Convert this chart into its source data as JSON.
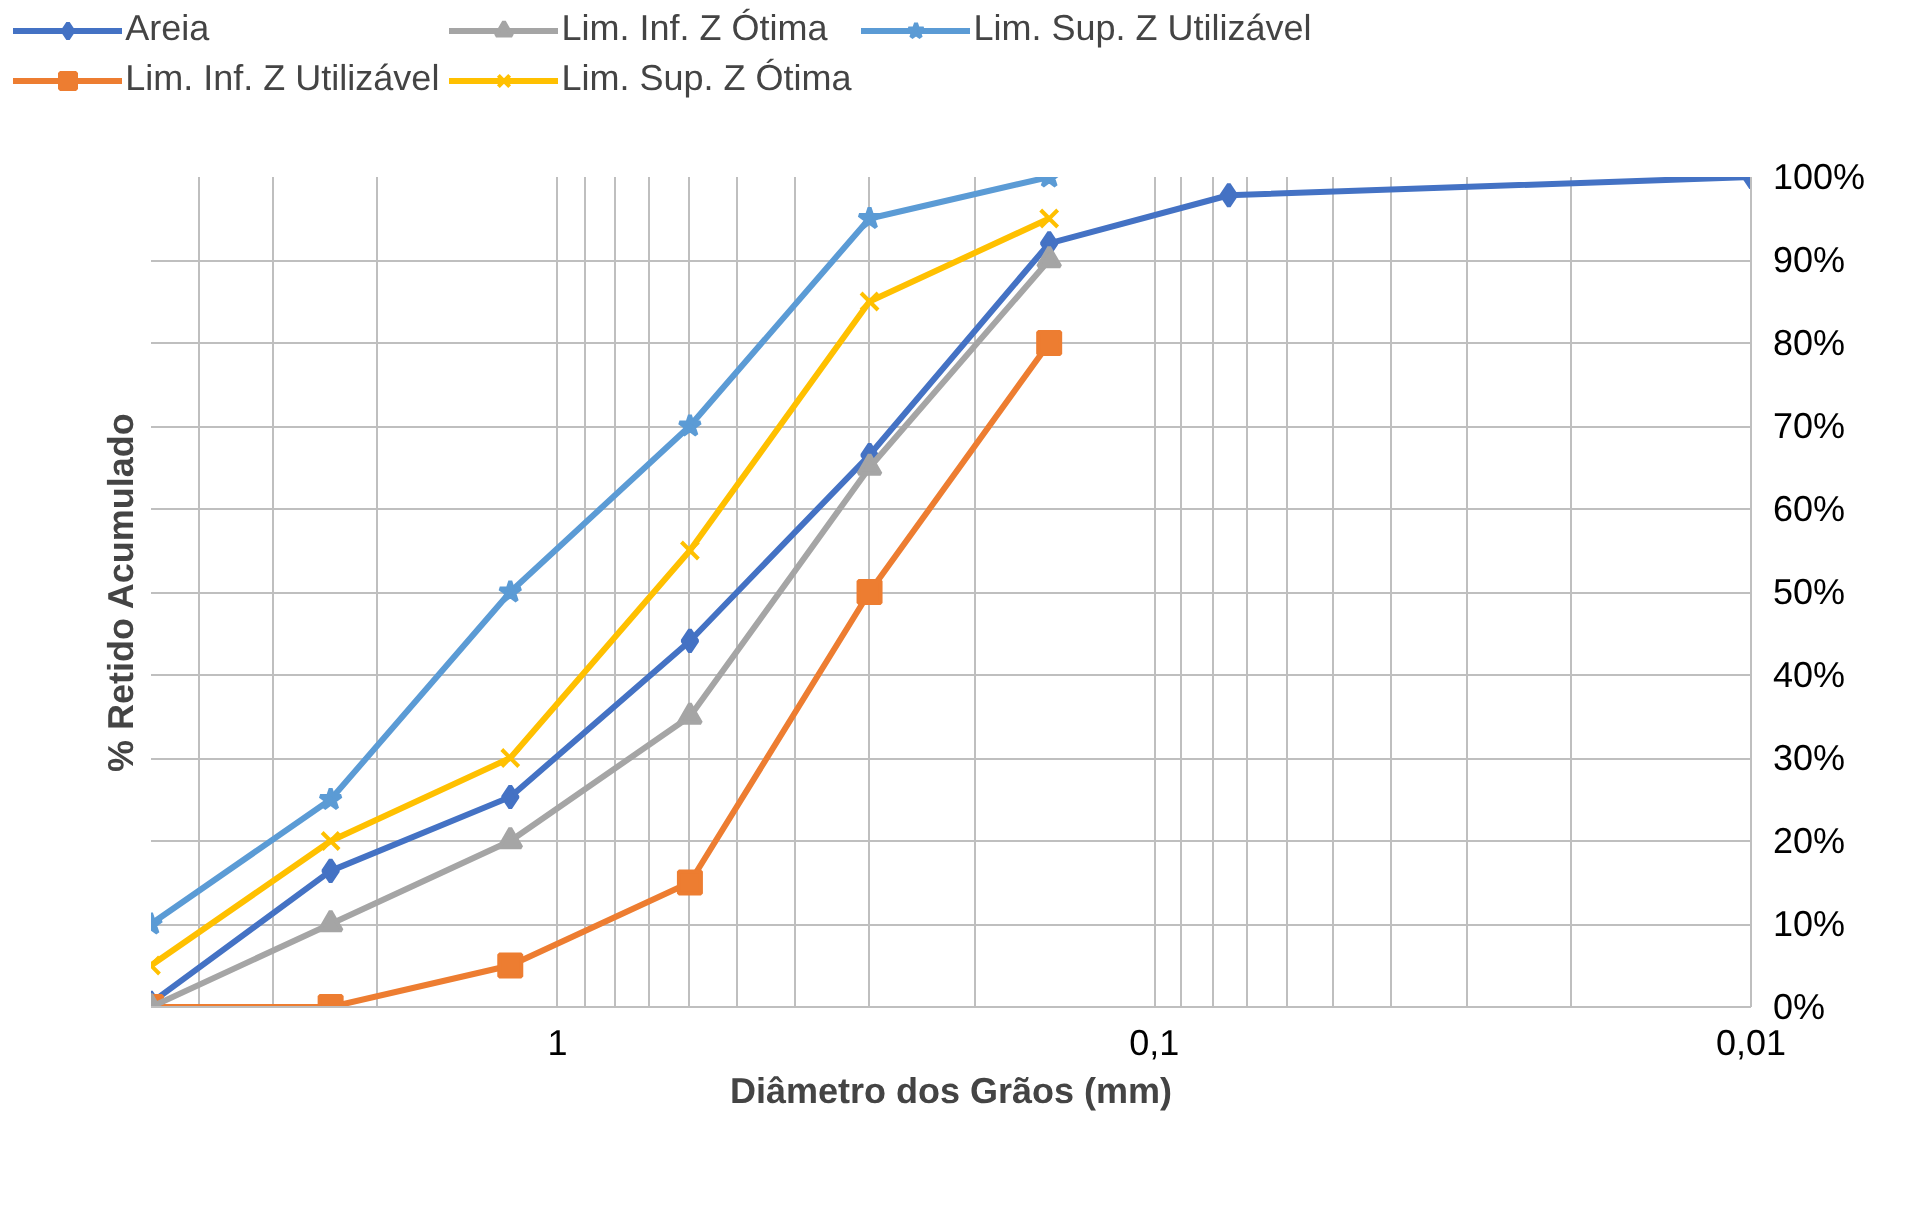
{
  "chart_data": {
    "type": "line",
    "xlabel": "Diâmetro dos Grãos (mm)",
    "ylabel": "% Retido Acumulado",
    "log": "x",
    "grid": true,
    "legend": "top",
    "line_style": "solid",
    "x": [
      4.8,
      2.4,
      1.2,
      0.6,
      0.3,
      0.15,
      0.075,
      0.01
    ],
    "xlim": [
      4.8,
      0.01
    ],
    "xticks": [
      {
        "value": 4,
        "label": null
      },
      {
        "value": 3,
        "label": null
      },
      {
        "value": 2,
        "label": null
      },
      1,
      {
        "value": 0.9,
        "label": null
      },
      {
        "value": 0.8,
        "label": null
      },
      {
        "value": 0.7,
        "label": null
      },
      {
        "value": 0.6,
        "label": null
      },
      {
        "value": 0.5,
        "label": null
      },
      {
        "value": 0.4,
        "label": null
      },
      {
        "value": 0.3,
        "label": null
      },
      {
        "value": 0.2,
        "label": null
      },
      {
        "value": 0.1,
        "label": "0,1"
      },
      {
        "value": 0.09,
        "label": null
      },
      {
        "value": 0.08,
        "label": null
      },
      {
        "value": 0.07,
        "label": null
      },
      {
        "value": 0.06,
        "label": null
      },
      {
        "value": 0.05,
        "label": null
      },
      {
        "value": 0.04,
        "label": null
      },
      {
        "value": 0.03,
        "label": null
      },
      {
        "value": 0.02,
        "label": null
      },
      {
        "value": 0.01,
        "label": "0,01"
      }
    ],
    "ylim": [
      0,
      100
    ],
    "yticks": [
      {
        "value": 0,
        "label": "0%"
      },
      {
        "value": 10,
        "label": "10%"
      },
      {
        "value": 20,
        "label": "20%"
      },
      {
        "value": 30,
        "label": "30%"
      },
      {
        "value": 40,
        "label": "40%"
      },
      {
        "value": 50,
        "label": "50%"
      },
      {
        "value": 60,
        "label": "60%"
      },
      {
        "value": 70,
        "label": "70%"
      },
      {
        "value": 80,
        "label": "80%"
      },
      {
        "value": 90,
        "label": "90%"
      },
      {
        "value": 100,
        "label": "100%"
      }
    ],
    "series": [
      {
        "name": "Areia",
        "color": "#4472c4",
        "marker": "diamond",
        "values": [
          0.5,
          16.4,
          25.3,
          44.1,
          66.5,
          92,
          97.8,
          100
        ]
      },
      {
        "name": "Lim. Inf. Z Utilizável",
        "color": "#ed7d31",
        "marker": "square",
        "values": [
          0,
          0,
          5,
          15,
          50,
          80,
          null,
          null
        ]
      },
      {
        "name": "Lim. Inf. Z Ótima",
        "color": "#a5a5a5",
        "marker": "triangle",
        "values": [
          0,
          10,
          20,
          35,
          65,
          90,
          null,
          null
        ]
      },
      {
        "name": "Lim. Sup. Z Ótima",
        "color": "#ffc000",
        "marker": "cross",
        "values": [
          5,
          20,
          30,
          55,
          85,
          95,
          null,
          null
        ]
      },
      {
        "name": "Lim. Sup. Z Utilizável",
        "color": "#5b9bd5",
        "marker": "star",
        "values": [
          10,
          25,
          50,
          70,
          95,
          100,
          null,
          null
        ]
      }
    ]
  }
}
